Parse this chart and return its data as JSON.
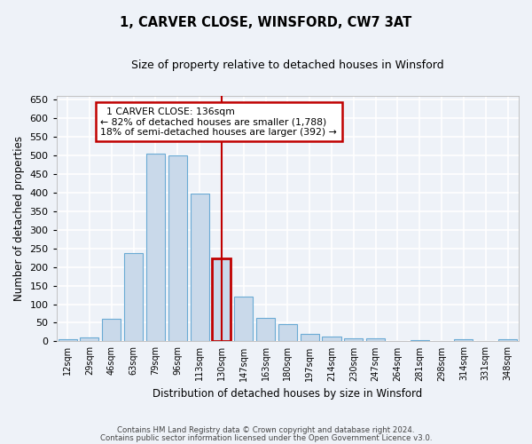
{
  "title": "1, CARVER CLOSE, WINSFORD, CW7 3AT",
  "subtitle": "Size of property relative to detached houses in Winsford",
  "xlabel": "Distribution of detached houses by size in Winsford",
  "ylabel": "Number of detached properties",
  "bar_labels": [
    "12sqm",
    "29sqm",
    "46sqm",
    "63sqm",
    "79sqm",
    "96sqm",
    "113sqm",
    "130sqm",
    "147sqm",
    "163sqm",
    "180sqm",
    "197sqm",
    "214sqm",
    "230sqm",
    "247sqm",
    "264sqm",
    "281sqm",
    "298sqm",
    "314sqm",
    "331sqm",
    "348sqm"
  ],
  "bar_values": [
    5,
    10,
    60,
    238,
    505,
    500,
    397,
    222,
    120,
    62,
    46,
    20,
    12,
    8,
    8,
    0,
    3,
    0,
    5,
    0,
    5
  ],
  "bar_color": "#c9d9ea",
  "bar_edge_color": "#6aaad4",
  "highlight_bar_index": 7,
  "highlight_bar_edge_color": "#c00000",
  "vline_color": "#c00000",
  "annotation_title": "1 CARVER CLOSE: 136sqm",
  "annotation_line1": "← 82% of detached houses are smaller (1,788)",
  "annotation_line2": "18% of semi-detached houses are larger (392) →",
  "annotation_box_edge_color": "#c00000",
  "ylim": [
    0,
    660
  ],
  "yticks": [
    0,
    50,
    100,
    150,
    200,
    250,
    300,
    350,
    400,
    450,
    500,
    550,
    600,
    650
  ],
  "background_color": "#eef2f8",
  "grid_color": "#ffffff",
  "footnote1": "Contains HM Land Registry data © Crown copyright and database right 2024.",
  "footnote2": "Contains public sector information licensed under the Open Government Licence v3.0."
}
